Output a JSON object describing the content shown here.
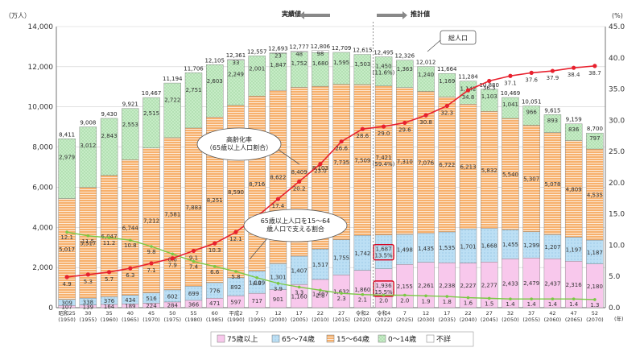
{
  "chart_data": {
    "type": "bar",
    "title": "",
    "y_unit_left": "（万人）",
    "y_unit_right": "(%)",
    "x_unit": "(年)",
    "ylim": [
      0,
      14000
    ],
    "yticks": [
      "0",
      "2,000",
      "4,000",
      "6,000",
      "8,000",
      "10,000",
      "12,000",
      "14,000"
    ],
    "ylim_right": [
      0,
      45
    ],
    "yticks_right": [
      "0.0",
      "5.0",
      "10.0",
      "15.0",
      "20.0",
      "25.0",
      "30.0",
      "35.0",
      "40.0",
      "45.0"
    ],
    "categories": [
      {
        "era": "昭和25",
        "year": "(1950)"
      },
      {
        "era": "30",
        "year": "(1955)"
      },
      {
        "era": "35",
        "year": "(1960)"
      },
      {
        "era": "40",
        "year": "(1965)"
      },
      {
        "era": "45",
        "year": "(1970)"
      },
      {
        "era": "50",
        "year": "(1975)"
      },
      {
        "era": "55",
        "year": "(1980)"
      },
      {
        "era": "60",
        "year": "(1985)"
      },
      {
        "era": "平成2",
        "year": "(1990)"
      },
      {
        "era": "7",
        "year": "(1995)"
      },
      {
        "era": "12",
        "year": "(2000)"
      },
      {
        "era": "17",
        "year": "(2005)"
      },
      {
        "era": "22",
        "year": "(2010)"
      },
      {
        "era": "27",
        "year": "(2015)"
      },
      {
        "era": "令和2",
        "year": "(2020)"
      },
      {
        "era": "令和4",
        "year": "(2022)"
      },
      {
        "era": "7",
        "year": "(2025)"
      },
      {
        "era": "12",
        "year": "(2030)"
      },
      {
        "era": "17",
        "year": "(2035)"
      },
      {
        "era": "22",
        "year": "(2040)"
      },
      {
        "era": "27",
        "year": "(2045)"
      },
      {
        "era": "32",
        "year": "(2050)"
      },
      {
        "era": "37",
        "year": "(2055)"
      },
      {
        "era": "42",
        "year": "(2060)"
      },
      {
        "era": "47",
        "year": "(2065)"
      },
      {
        "era": "52",
        "year": "(2070)"
      }
    ],
    "totals": [
      "8,411",
      "9,008",
      "9,430",
      "9,921",
      "10,467",
      "11,194",
      "11,706",
      "12,105",
      "12,361",
      "12,557",
      "12,693",
      "12,777",
      "12,806",
      "12,709",
      "12,615",
      "12,495",
      "12,326",
      "12,012",
      "11,664",
      "11,284",
      "10,880",
      "10,469",
      "10,051",
      "9,615",
      "9,159",
      "8,700"
    ],
    "series": [
      {
        "name": "75歳以上",
        "color": "#f8c8ec",
        "values": [
          107,
          139,
          164,
          189,
          224,
          284,
          366,
          471,
          597,
          717,
          901,
          1160,
          1407,
          1632,
          1860,
          1936,
          2155,
          2261,
          2238,
          2227,
          2277,
          2433,
          2479,
          2437,
          2316,
          2180
        ],
        "labels": [
          "107",
          "139",
          "164",
          "189",
          "224",
          "284",
          "366",
          "471",
          "597",
          "717",
          "901",
          "1,160",
          "1,407",
          "1,632",
          "1,860",
          "1,936\n(15.5%)",
          "2,155",
          "2,261",
          "2,238",
          "2,227",
          "2,277",
          "2,433",
          "2,479",
          "2,437",
          "2,316",
          "2,180"
        ]
      },
      {
        "name": "65～74歳",
        "color": "#bcdff4",
        "values": [
          309,
          338,
          376,
          434,
          516,
          602,
          699,
          776,
          892,
          1109,
          1301,
          1407,
          1517,
          1755,
          1742,
          1687,
          1498,
          1435,
          1535,
          1701,
          1668,
          1455,
          1299,
          1207,
          1197,
          1187
        ],
        "labels": [
          "309",
          "338",
          "376",
          "434",
          "516",
          "602",
          "699",
          "776",
          "892",
          "1,109",
          "1,301",
          "1,407",
          "1,517",
          "1,755",
          "1,742",
          "1,687\n(13.5%)",
          "1,498",
          "1,435",
          "1,535",
          "1,701",
          "1,668",
          "1,455",
          "1,299",
          "1,207",
          "1,197",
          "1,187"
        ]
      },
      {
        "name": "15～64歳",
        "color": "#f7b06c",
        "values": [
          5017,
          5517,
          6047,
          6744,
          7212,
          7581,
          7883,
          8251,
          8590,
          8716,
          8622,
          8409,
          8103,
          7735,
          7509,
          7421,
          7310,
          7076,
          6722,
          6213,
          5832,
          5540,
          5307,
          5078,
          4809,
          4535
        ],
        "labels": [
          "5,017",
          "5,517",
          "6,047",
          "6,744",
          "7,212",
          "7,581",
          "7,883",
          "8,251",
          "8,590",
          "8,716",
          "8,622",
          "8,409",
          "8,103",
          "7,735",
          "7,509",
          "7,421\n(59.4%)",
          "7,310",
          "7,076",
          "6,722",
          "6,213",
          "5,832",
          "5,540",
          "5,307",
          "5,078",
          "4,809",
          "4,535"
        ]
      },
      {
        "name": "0～14歳",
        "color": "#c6ecc6",
        "values": [
          2979,
          3012,
          2843,
          2553,
          2515,
          2722,
          2751,
          2603,
          2249,
          2001,
          1847,
          1752,
          1680,
          1595,
          1503,
          1450,
          1363,
          1240,
          1169,
          1142,
          1103,
          1041,
          966,
          893,
          836,
          797
        ],
        "labels": [
          "2,979",
          "3,012",
          "2,843",
          "2,553",
          "2,515",
          "2,722",
          "2,751",
          "2,603",
          "2,249",
          "2,001",
          "1,847",
          "1,752",
          "1,680",
          "1,595",
          "1,503",
          "1,450\n(11.6%)",
          "1,363",
          "1,240",
          "1,169",
          "1,142",
          "1,103",
          "1,041",
          "966",
          "893",
          "836",
          "797"
        ]
      },
      {
        "name": "不詳",
        "color": "#ffffff",
        "values": [
          0,
          0,
          0,
          0,
          0,
          0,
          0,
          0,
          33,
          0,
          23,
          48,
          98,
          0,
          0,
          0,
          0,
          0,
          0,
          0,
          0,
          0,
          0,
          0,
          0,
          0
        ],
        "labels": [
          "",
          "",
          "",
          "",
          "",
          "",
          "",
          "",
          "33",
          "",
          "23",
          "48",
          "98",
          "",
          "",
          "",
          "",
          "",
          "",
          "",
          "",
          "",
          "",
          "",
          "",
          ""
        ]
      }
    ],
    "aging_rate": {
      "name": "高齢化率\n（65歳以上人口割合）",
      "color": "#e8212e",
      "values": [
        4.9,
        5.3,
        5.7,
        6.3,
        7.1,
        7.9,
        9.1,
        10.3,
        12.1,
        14.6,
        17.4,
        20.2,
        23.0,
        26.6,
        28.6,
        29.0,
        29.6,
        30.8,
        32.3,
        34.8,
        36.3,
        37.1,
        37.6,
        37.9,
        38.4,
        38.7
      ],
      "labels": [
        "4.9",
        "5.3",
        "5.7",
        "6.3",
        "7.1",
        "7.9",
        "9.1",
        "10.3",
        "12.1",
        "14.6",
        "17.4",
        "20.2",
        "23.0",
        "26.6",
        "28.6",
        "29.0",
        "29.6",
        "30.8",
        "32.3",
        "34.8",
        "36.3",
        "37.1",
        "37.6",
        "37.9",
        "38.4",
        "38.7"
      ]
    },
    "support_ratio": {
      "name": "65歳以上人口を15～64\n歳人口で支える割合",
      "color": "#7ac943",
      "values": [
        12.1,
        11.5,
        11.2,
        10.8,
        9.8,
        8.6,
        7.4,
        6.6,
        5.8,
        4.8,
        3.9,
        3.3,
        2.8,
        2.3,
        2.1,
        2.0,
        2.0,
        1.9,
        1.8,
        1.6,
        1.5,
        1.4,
        1.4,
        1.4,
        1.4,
        1.3
      ],
      "labels": [
        "12.1",
        "11.5",
        "11.2",
        "10.8",
        "9.8",
        "8.6",
        "7.4",
        "6.6",
        "5.8",
        "4.8",
        "3.9",
        "3.3",
        "2.8",
        "2.3",
        "2.1",
        "2.0",
        "2.0",
        "1.9",
        "1.8",
        "1.6",
        "1.5",
        "1.4",
        "1.4",
        "1.4",
        "1.4",
        "1.3"
      ]
    },
    "total_callout": "総人口",
    "actual_label": "実績値",
    "projection_label": "推計値",
    "legend_placement": "bottom"
  },
  "colors": {
    "rate_line": "#e8212e",
    "support_line": "#7ac943",
    "highlight_box": "#d6001c"
  }
}
